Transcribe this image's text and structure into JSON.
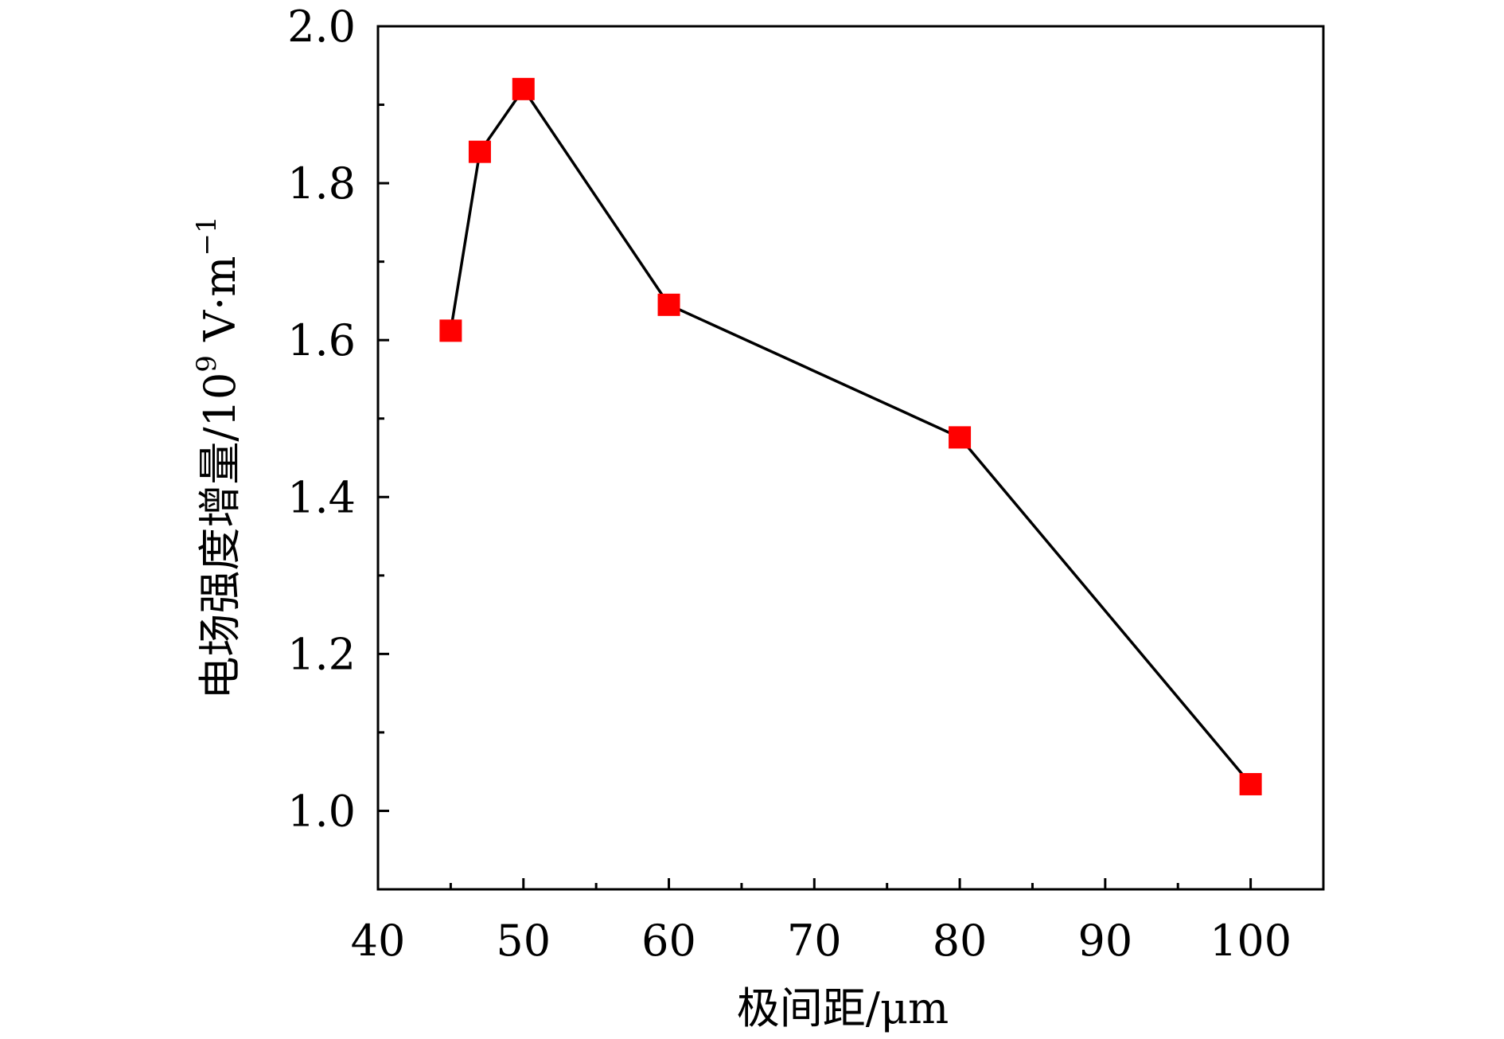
{
  "chart_data": {
    "type": "line",
    "title": "",
    "xlabel": "极间距/μm",
    "ylabel": {
      "main": "电场强度增量/10",
      "exp": "9",
      "unit": " V·m",
      "unit_exp": "−1"
    },
    "xlim": [
      40,
      105
    ],
    "ylim": [
      0.9,
      2.0
    ],
    "x_ticks": [
      40,
      50,
      60,
      70,
      80,
      90,
      100
    ],
    "x_tick_labels": [
      "40",
      "50",
      "60",
      "70",
      "80",
      "90",
      "100"
    ],
    "x_minor_ticks": [
      45,
      55,
      65,
      75,
      85,
      95
    ],
    "y_ticks": [
      1.0,
      1.2,
      1.4,
      1.6,
      1.8,
      2.0
    ],
    "y_tick_labels": [
      "1.0",
      "1.2",
      "1.4",
      "1.6",
      "1.8",
      "2.0"
    ],
    "y_minor_ticks": [
      1.1,
      1.3,
      1.5,
      1.7,
      1.9
    ],
    "grid": false,
    "series": [
      {
        "name": "电场强度增量",
        "x": [
          45,
          47,
          50,
          60,
          80,
          100
        ],
        "y": [
          1.612,
          1.84,
          1.92,
          1.645,
          1.476,
          1.034
        ],
        "line_color": "#000000",
        "marker": "square",
        "marker_color": "#ff0000"
      }
    ]
  }
}
